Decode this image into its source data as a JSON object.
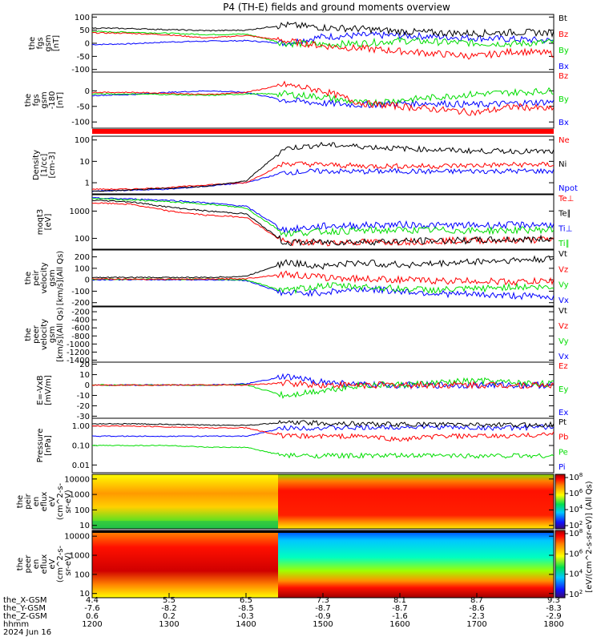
{
  "title": "P4 (TH-E) fields and ground moments overview",
  "colors": {
    "black": "#000000",
    "red": "#ff0000",
    "green": "#00dd00",
    "blue": "#0000ff"
  },
  "panels": [
    {
      "id": "fgs-gsm",
      "ylabel": [
        "the",
        "fgs",
        "gsm",
        "[nT]"
      ],
      "ticks": [
        {
          "v": 100,
          "t": "100"
        },
        {
          "v": 50,
          "t": "50"
        },
        {
          "v": 0,
          "t": "0"
        },
        {
          "v": -50,
          "t": "-50"
        },
        {
          "v": -100,
          "t": "-100"
        }
      ],
      "ylim": [
        -110,
        110
      ],
      "log": false,
      "legend": [
        {
          "t": "Bt",
          "c": "black"
        },
        {
          "t": "Bz",
          "c": "red"
        },
        {
          "t": "By",
          "c": "green"
        },
        {
          "t": "Bx",
          "c": "blue"
        }
      ]
    },
    {
      "id": "fgs-gsm-hp",
      "ylabel": [
        "the",
        "fgs",
        "gsm",
        "-180",
        "[nT]"
      ],
      "ticks": [
        {
          "v": 0,
          "t": "0"
        },
        {
          "v": -50,
          "t": "-50"
        },
        {
          "v": -100,
          "t": "-100"
        }
      ],
      "ylim": [
        -120,
        60
      ],
      "log": false,
      "legend": [
        {
          "t": "Bz",
          "c": "red"
        },
        {
          "t": "By",
          "c": "green"
        },
        {
          "t": "Bx",
          "c": "blue"
        }
      ]
    },
    {
      "id": "density",
      "ylabel": [
        "Density",
        "[1/cc]",
        "[cm-3]"
      ],
      "ticks": [
        {
          "v": 100,
          "t": "100"
        },
        {
          "v": 10,
          "t": "10"
        },
        {
          "v": 1,
          "t": "1"
        }
      ],
      "ylim": [
        0.3,
        150
      ],
      "log": true,
      "legend": [
        {
          "t": "Ne",
          "c": "red"
        },
        {
          "t": "Ni",
          "c": "black"
        },
        {
          "t": "Npot",
          "c": "blue"
        }
      ]
    },
    {
      "id": "temp",
      "ylabel": [
        "moqt3",
        "[eV]"
      ],
      "ticks": [
        {
          "v": 1000,
          "t": "1000"
        },
        {
          "v": 100,
          "t": "100"
        }
      ],
      "ylim": [
        40,
        4000
      ],
      "log": true,
      "legend": [
        {
          "t": "Te⊥",
          "c": "red"
        },
        {
          "t": "Te∥",
          "c": "black"
        },
        {
          "t": "Ti⊥",
          "c": "blue"
        },
        {
          "t": "Ti∥",
          "c": "green"
        }
      ]
    },
    {
      "id": "peir-vel",
      "ylabel": [
        "the",
        "peir",
        "velocity",
        "gsm",
        "[km/s](All Qs)"
      ],
      "ticks": [
        {
          "v": 200,
          "t": "200"
        },
        {
          "v": 100,
          "t": "100"
        },
        {
          "v": 0,
          "t": "0"
        },
        {
          "v": -100,
          "t": "-100"
        },
        {
          "v": -200,
          "t": "-200"
        }
      ],
      "ylim": [
        -230,
        260
      ],
      "log": false,
      "legend": [
        {
          "t": "Vt",
          "c": "black"
        },
        {
          "t": "Vz",
          "c": "red"
        },
        {
          "t": "Vy",
          "c": "green"
        },
        {
          "t": "Vx",
          "c": "blue"
        }
      ]
    },
    {
      "id": "peer-vel",
      "ylabel": [
        "the",
        "peer",
        "velocity",
        "gsm",
        "[km/s](All Qs)"
      ],
      "ticks": [
        {
          "v": -200,
          "t": "-200"
        },
        {
          "v": -400,
          "t": "-400"
        },
        {
          "v": -600,
          "t": "-600"
        },
        {
          "v": -800,
          "t": "-800"
        },
        {
          "v": -1000,
          "t": "-1000"
        },
        {
          "v": -1200,
          "t": "-1200"
        },
        {
          "v": -1400,
          "t": "-1400"
        }
      ],
      "ylim": [
        -1450,
        -80
      ],
      "log": false,
      "legend": [
        {
          "t": "Vt",
          "c": "black"
        },
        {
          "t": "Vz",
          "c": "red"
        },
        {
          "t": "Vy",
          "c": "green"
        },
        {
          "t": "Vx",
          "c": "blue"
        }
      ]
    },
    {
      "id": "efield",
      "ylabel": [
        "E=-VxB",
        "[mV/m]"
      ],
      "ticks": [
        {
          "v": 20,
          "t": "20"
        },
        {
          "v": 10,
          "t": "10"
        },
        {
          "v": 0,
          "t": "0"
        },
        {
          "v": -10,
          "t": "-10"
        },
        {
          "v": -20,
          "t": "-20"
        },
        {
          "v": -30,
          "t": "-30"
        }
      ],
      "ylim": [
        -32,
        22
      ],
      "log": false,
      "legend": [
        {
          "t": "Ez",
          "c": "red"
        },
        {
          "t": "Ey",
          "c": "green"
        },
        {
          "t": "Ex",
          "c": "blue"
        }
      ]
    },
    {
      "id": "pressure",
      "ylabel": [
        "Pressure",
        "[nPa]"
      ],
      "ticks": [
        {
          "v": 1,
          "t": "1.00"
        },
        {
          "v": 0.1,
          "t": "0.10"
        },
        {
          "v": 0.01,
          "t": "0.01"
        }
      ],
      "ylim": [
        0.004,
        2.5
      ],
      "log": true,
      "legend": [
        {
          "t": "Pt",
          "c": "black"
        },
        {
          "t": "Pb",
          "c": "red"
        },
        {
          "t": "Pe",
          "c": "green"
        },
        {
          "t": "Pi",
          "c": "blue"
        }
      ]
    },
    {
      "id": "peir-eflux",
      "ylabel": [
        "the",
        "peir",
        "en",
        "eflux",
        "eV",
        "(cm^2-s-",
        "sr-eV)"
      ],
      "ticks": [
        {
          "v": 10000,
          "t": "10000"
        },
        {
          "v": 1000,
          "t": "1000"
        },
        {
          "v": 100,
          "t": "100"
        },
        {
          "v": 10,
          "t": "10"
        }
      ],
      "ylim": [
        6,
        20000
      ],
      "log": true,
      "legend": []
    },
    {
      "id": "peer-eflux",
      "ylabel": [
        "the",
        "peer",
        "en",
        "eflux",
        "eV",
        "(cm^2-s-",
        "sr-eV)"
      ],
      "ticks": [
        {
          "v": 10000,
          "t": "10000"
        },
        {
          "v": 1000,
          "t": "1000"
        },
        {
          "v": 100,
          "t": "100"
        },
        {
          "v": 10,
          "t": "10"
        }
      ],
      "ylim": [
        6,
        20000
      ],
      "log": true,
      "legend": []
    }
  ],
  "colorbar": {
    "label": "[eV/(cm^2-s-sr-eV)] (All Qs)",
    "top_ticks": [
      {
        "e": "8",
        "t": "10"
      },
      {
        "e": "6",
        "t": "10"
      },
      {
        "e": "4",
        "t": "10"
      },
      {
        "e": "2",
        "t": "10"
      }
    ],
    "bot_ticks": [
      {
        "e": "8",
        "t": "10"
      },
      {
        "e": "6",
        "t": "10"
      },
      {
        "e": "4",
        "t": "10"
      },
      {
        "e": "2",
        "t": "10"
      }
    ]
  },
  "xaxis": {
    "row_labels": [
      "the_X-GSM",
      "the_Y-GSM",
      "the_Z-GSM",
      "hhmm",
      "2024 Jun 16"
    ],
    "ticks": [
      {
        "x": "4.4",
        "y": "-7.6",
        "z": "0.6",
        "t": "1200"
      },
      {
        "x": "5.5",
        "y": "-8.2",
        "z": "0.2",
        "t": "1300"
      },
      {
        "x": "6.5",
        "y": "-8.5",
        "z": "-0.3",
        "t": "1400"
      },
      {
        "x": "7.3",
        "y": "-8.7",
        "z": "-0.9",
        "t": "1500"
      },
      {
        "x": "8.1",
        "y": "-8.7",
        "z": "-1.6",
        "t": "1600"
      },
      {
        "x": "8.7",
        "y": "-8.6",
        "z": "-2.3",
        "t": "1700"
      },
      {
        "x": "9.3",
        "y": "-8.3",
        "z": "-2.9",
        "t": "1800"
      }
    ]
  },
  "chart_data": {
    "type": "line",
    "title": "P4 (TH-E) fields and ground moments overview",
    "x": [
      "1200",
      "1230",
      "1300",
      "1330",
      "1400",
      "1430",
      "1500",
      "1530",
      "1600",
      "1630",
      "1700",
      "1730",
      "1800"
    ],
    "panels": [
      {
        "ylabel": "the fgs gsm [nT]",
        "series": [
          {
            "name": "Bt",
            "values": [
              58,
              56,
              52,
              48,
              50,
              70,
              60,
              55,
              45,
              40,
              38,
              42,
              40
            ]
          },
          {
            "name": "Bz",
            "values": [
              40,
              38,
              32,
              20,
              30,
              10,
              -10,
              -20,
              -30,
              -40,
              -50,
              -30,
              -40
            ]
          },
          {
            "name": "By",
            "values": [
              45,
              42,
              38,
              33,
              35,
              0,
              -5,
              0,
              10,
              5,
              0,
              -2,
              5
            ]
          },
          {
            "name": "Bx",
            "values": [
              -5,
              -2,
              5,
              8,
              10,
              0,
              25,
              30,
              30,
              25,
              20,
              15,
              10
            ]
          }
        ]
      },
      {
        "ylabel": "the fgs gsm-180 [nT]",
        "series": [
          {
            "name": "Bz",
            "values": [
              -5,
              -5,
              -8,
              -12,
              -5,
              20,
              0,
              -40,
              -50,
              -60,
              -70,
              -50,
              -60
            ]
          },
          {
            "name": "By",
            "values": [
              -10,
              -10,
              -12,
              -15,
              -10,
              -10,
              -20,
              -40,
              -30,
              -20,
              -10,
              -5,
              0
            ]
          },
          {
            "name": "Bx",
            "values": [
              -15,
              -12,
              -5,
              0,
              -5,
              -30,
              -40,
              -45,
              -40,
              -40,
              -45,
              -40,
              -35
            ]
          }
        ]
      },
      {
        "ylabel": "Density [1/cc]",
        "series": [
          {
            "name": "Ne",
            "values": [
              0.5,
              0.5,
              0.6,
              0.8,
              1.0,
              8,
              7,
              6,
              6,
              6,
              6.5,
              7,
              7
            ]
          },
          {
            "name": "Ni",
            "values": [
              0.4,
              0.45,
              0.55,
              0.7,
              1.2,
              40,
              60,
              50,
              40,
              35,
              30,
              30,
              28
            ]
          },
          {
            "name": "Npot",
            "values": [
              0.4,
              0.45,
              0.5,
              0.7,
              1.0,
              3,
              3.5,
              3.3,
              3.5,
              3.3,
              3.5,
              3.5,
              3.5
            ]
          }
        ]
      },
      {
        "ylabel": "moqt3 [eV]",
        "series": [
          {
            "name": "Te⊥",
            "values": [
              2000,
              1800,
              1000,
              700,
              600,
              70,
              70,
              72,
              75,
              80,
              85,
              85,
              90
            ]
          },
          {
            "name": "Te∥",
            "values": [
              2500,
              2200,
              1400,
              1000,
              800,
              70,
              72,
              75,
              78,
              82,
              85,
              90,
              95
            ]
          },
          {
            "name": "Ti⊥",
            "values": [
              3000,
              2800,
              2500,
              2000,
              1500,
              200,
              280,
              300,
              320,
              300,
              300,
              310,
              320
            ]
          },
          {
            "name": "Ti∥",
            "values": [
              2800,
              2600,
              2200,
              1800,
              1300,
              150,
              180,
              190,
              200,
              200,
              190,
              200,
              210
            ]
          }
        ]
      },
      {
        "ylabel": "the peir velocity gsm [km/s](All Qs)",
        "series": [
          {
            "name": "Vt",
            "values": [
              20,
              20,
              20,
              20,
              30,
              150,
              120,
              150,
              130,
              140,
              160,
              170,
              180
            ]
          },
          {
            "name": "Vz",
            "values": [
              10,
              5,
              5,
              5,
              10,
              50,
              20,
              10,
              0,
              -10,
              -10,
              -20,
              -10
            ]
          },
          {
            "name": "Vy",
            "values": [
              5,
              5,
              5,
              5,
              0,
              -100,
              -50,
              -60,
              -80,
              -90,
              -80,
              -60,
              -70
            ]
          },
          {
            "name": "Vx",
            "values": [
              0,
              0,
              0,
              0,
              -5,
              -120,
              -110,
              -80,
              -100,
              -120,
              -130,
              -140,
              -150
            ]
          }
        ]
      },
      {
        "ylabel": "E=-VxB [mV/m]",
        "series": [
          {
            "name": "Ez",
            "values": [
              0,
              0,
              0,
              0,
              0,
              2,
              0,
              0,
              0,
              0,
              0,
              0,
              0
            ]
          },
          {
            "name": "Ey",
            "values": [
              0,
              0,
              0,
              0,
              0,
              -10,
              -5,
              0,
              0,
              2,
              4,
              2,
              1
            ]
          },
          {
            "name": "Ex",
            "values": [
              0,
              0,
              0,
              0,
              1,
              8,
              3,
              0,
              0,
              0,
              0,
              0,
              0
            ]
          }
        ]
      },
      {
        "ylabel": "Pressure [nPa]",
        "series": [
          {
            "name": "Pt",
            "values": [
              1.3,
              1.3,
              1.2,
              1.1,
              1.1,
              1.5,
              1.4,
              1.3,
              1.2,
              1.2,
              1.2,
              1.1,
              1.2
            ]
          },
          {
            "name": "Pb",
            "values": [
              1.0,
              1.0,
              0.9,
              0.8,
              0.8,
              0.3,
              0.3,
              0.3,
              0.2,
              0.3,
              0.3,
              0.3,
              0.4
            ]
          },
          {
            "name": "Pe",
            "values": [
              0.1,
              0.1,
              0.1,
              0.08,
              0.08,
              0.03,
              0.03,
              0.03,
              0.03,
              0.03,
              0.03,
              0.03,
              0.03
            ]
          },
          {
            "name": "Pi",
            "values": [
              0.3,
              0.3,
              0.3,
              0.3,
              0.3,
              0.8,
              0.8,
              0.8,
              0.9,
              0.9,
              0.8,
              0.8,
              0.9
            ]
          }
        ]
      }
    ]
  }
}
